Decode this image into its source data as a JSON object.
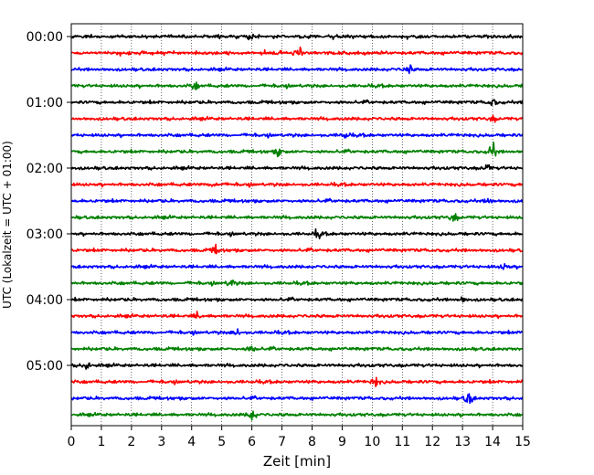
{
  "chart_data": {
    "type": "line",
    "title": "",
    "xlabel": "Zeit  [min]",
    "ylabel": "UTC (Lokalzeit = UTC + 01:00)",
    "xlim": [
      0,
      15
    ],
    "ylim_traces": [
      0,
      24
    ],
    "x_ticks": [
      "0",
      "1",
      "2",
      "3",
      "4",
      "5",
      "6",
      "7",
      "8",
      "9",
      "10",
      "11",
      "12",
      "13",
      "14",
      "15"
    ],
    "y_ticks": [
      "00:00",
      "01:00",
      "02:00",
      "03:00",
      "04:00",
      "05:00"
    ],
    "grid": "vertical dotted at each minute",
    "legend": "none",
    "trace_colors": [
      "#000000",
      "#ff0000",
      "#0000ff",
      "#008000"
    ],
    "line_count": 24,
    "minutes_per_line": 15,
    "events": [
      {
        "line": 0,
        "minute": 5.9,
        "amplitude": 0.9
      },
      {
        "line": 1,
        "minute": 7.6,
        "amplitude": 0.7
      },
      {
        "line": 2,
        "minute": 11.2,
        "amplitude": 1.0
      },
      {
        "line": 3,
        "minute": 4.1,
        "amplitude": 0.8
      },
      {
        "line": 4,
        "minute": 14.0,
        "amplitude": 0.8
      },
      {
        "line": 5,
        "minute": 14.0,
        "amplitude": 0.6
      },
      {
        "line": 6,
        "minute": 9.1,
        "amplitude": 0.6
      },
      {
        "line": 7,
        "minute": 6.9,
        "amplitude": 0.9
      },
      {
        "line": 7,
        "minute": 14.0,
        "amplitude": 1.8
      },
      {
        "line": 8,
        "minute": 13.8,
        "amplitude": 0.7
      },
      {
        "line": 9,
        "minute": 4.8,
        "amplitude": 1.0
      },
      {
        "line": 10,
        "minute": 13.9,
        "amplitude": 0.6
      },
      {
        "line": 11,
        "minute": 12.7,
        "amplitude": 1.0
      },
      {
        "line": 12,
        "minute": 8.2,
        "amplitude": 0.7
      },
      {
        "line": 13,
        "minute": 4.8,
        "amplitude": 0.9
      },
      {
        "line": 14,
        "minute": 14.4,
        "amplitude": 0.7
      },
      {
        "line": 15,
        "minute": 5.3,
        "amplitude": 0.7
      },
      {
        "line": 16,
        "minute": 13.0,
        "amplitude": 0.6
      },
      {
        "line": 17,
        "minute": 4.2,
        "amplitude": 0.7
      },
      {
        "line": 18,
        "minute": 5.5,
        "amplitude": 0.8
      },
      {
        "line": 19,
        "minute": 6.0,
        "amplitude": 0.8
      },
      {
        "line": 20,
        "minute": 0.5,
        "amplitude": 1.0
      },
      {
        "line": 21,
        "minute": 10.1,
        "amplitude": 0.9
      },
      {
        "line": 22,
        "minute": 13.2,
        "amplitude": 1.5
      },
      {
        "line": 23,
        "minute": 6.0,
        "amplitude": 1.2
      }
    ]
  }
}
